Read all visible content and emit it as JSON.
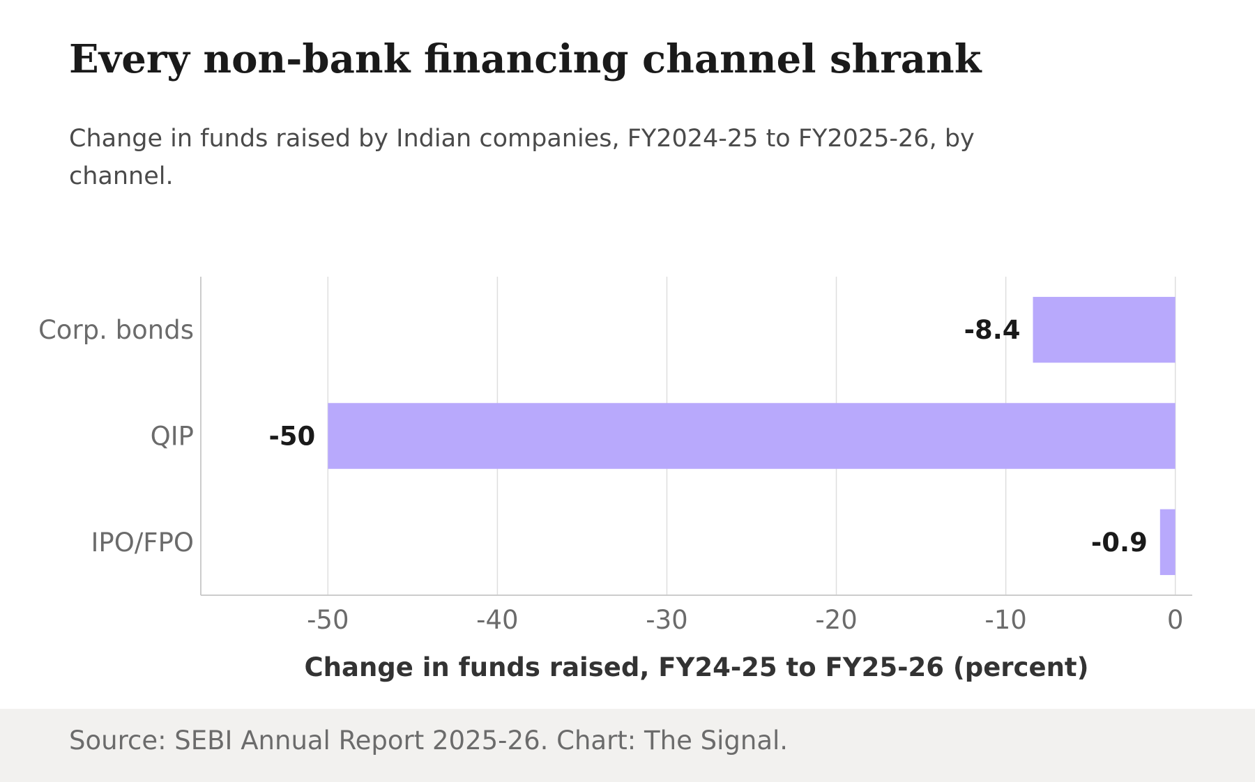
{
  "header": {
    "title": "Every non-bank financing channel shrank",
    "subtitle": "Change in funds raised by Indian companies, FY2024-25 to FY2025-26, by channel."
  },
  "footer": {
    "source": "Source: SEBI Annual Report 2025-26. Chart: The Signal."
  },
  "colors": {
    "bar": "#b8a9fc",
    "grid": "#dedede",
    "axis": "#cccccc",
    "tick_label": "#6b6b6b",
    "value_label": "#1a1a1a",
    "axis_title": "#333333"
  },
  "chart_data": {
    "type": "bar",
    "orientation": "horizontal",
    "categories": [
      "Corp. bonds",
      "QIP",
      "IPO/FPO"
    ],
    "values": [
      -8.4,
      -50,
      -0.9
    ],
    "value_labels": [
      "-8.4",
      "-50",
      "-0.9"
    ],
    "xlabel": "Change in funds raised, FY24-25 to FY25-26 (percent)",
    "ylabel": "",
    "xlim": [
      -57.5,
      1
    ],
    "xticks": [
      -50,
      -40,
      -30,
      -20,
      -10,
      0
    ],
    "xtick_labels": [
      "-50",
      "-40",
      "-30",
      "-20",
      "-10",
      "0"
    ],
    "grid": "vertical"
  }
}
